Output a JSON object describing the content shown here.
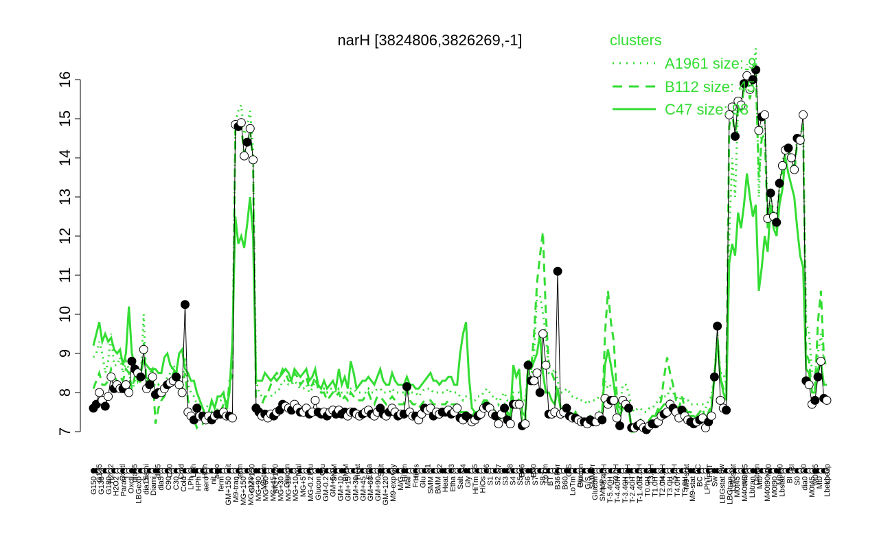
{
  "chart_data": {
    "type": "line",
    "title": "narH [3824806,3826269,-1]",
    "ylim": [
      7,
      16
    ],
    "yticks": [
      7,
      8,
      9,
      10,
      11,
      12,
      13,
      14,
      15,
      16
    ],
    "legend": {
      "title": "clusters",
      "placement": "top-right",
      "entries": [
        {
          "label": "A1961 size: 9",
          "style": "dotted"
        },
        {
          "label": "B112 size: 45",
          "style": "dashed"
        },
        {
          "label": "C47 size: 98",
          "style": "solid"
        }
      ]
    },
    "colors": {
      "axis": "#000000",
      "data": "#000000",
      "cluster": "#33dd33",
      "open_point": "#ffffff",
      "filled_point": "#000000"
    },
    "x_labels": [
      "G150",
      "G135",
      "G180",
      "H2O2",
      "Paraq",
      "Oxctl",
      "LBGexp",
      "dia15",
      "Diami",
      "dia5",
      "C90",
      "C30",
      "Cold",
      "LPh",
      "HPh",
      "aero",
      "nit",
      "ferm",
      "GM+150",
      "M9-tran",
      "MG+150",
      "MG+120",
      "MG+90",
      "MG+60",
      "MG+45",
      "MG+30",
      "MG+15",
      "MG+10",
      "MG+5",
      "MG-0.2",
      "Glucon",
      "GM-0.2",
      "GM+5",
      "GM+10",
      "GM+15",
      "GM+30",
      "GM+45",
      "GM+60",
      "GM+90",
      "GM+120",
      "M9-exp",
      "M/G",
      "Mal",
      "Fru",
      "Glu",
      "SMM",
      "BMM",
      "Heat",
      "Etha",
      "Salt",
      "Gly",
      "HiTm",
      "HiOs",
      "S1",
      "S2",
      "S3",
      "S4",
      "S5",
      "S6",
      "S7",
      "S8",
      "BT",
      "B36",
      "B60",
      "LoTm",
      "Pyr",
      "G/S",
      "Glucon",
      "SMMPr",
      "T-5.40H",
      "T-4.40H",
      "T-3.40H",
      "T-2.40H",
      "T-1.40H",
      "T0.0H",
      "T1.0H",
      "T2.0H",
      "T3.0H",
      "T4.0H",
      "T5.0H",
      "M9-stat",
      "BC",
      "LPhT",
      "Sw",
      "LBGstat",
      "LBGtran",
      "M0t45",
      "M40t45",
      "Lbtran",
      "Mt0",
      "M40t90",
      "M0t90",
      "Lbstat",
      "BI",
      "S0",
      "dia0",
      "M0t45",
      "Mt0",
      "Lbexp"
    ],
    "x_labels_top": [
      "G135",
      "H2O2",
      "Oxctl",
      "dia15",
      "Diami",
      "dia5",
      "C30",
      "Cold",
      "LPh",
      "HPh",
      "aero",
      "nit",
      "ferm",
      "GM+150",
      "M9-tran",
      "MG+120",
      "Glucon",
      "Mal",
      "Fru",
      "Glu",
      "SMM",
      "BMM",
      "Heat",
      "Etha",
      "Salt",
      "Gly",
      "HiTm",
      "HiOs",
      "S1",
      "S2",
      "S3",
      "S4",
      "S5",
      "S6",
      "S7",
      "S8",
      "B36",
      "B60",
      "LoTm",
      "Pyr",
      "G/S",
      "Glucon",
      "SMMPr",
      "T-5.40H",
      "T0.0H",
      "T1.0H",
      "T2.0H",
      "T3.0H",
      "T4.0H",
      "T5.0H",
      "M9-stat",
      "BC",
      "LPhT",
      "Sw",
      "LBGstat",
      "M0t45",
      "Lbtran",
      "Mt0",
      "M0t90",
      "BI",
      "S0",
      "M0t45",
      "Lbexp"
    ],
    "series": [
      {
        "name": "",
        "kind": "data",
        "values": [
          7.6,
          7.7,
          8.0,
          7.8,
          7.65,
          7.9,
          8.4,
          8.1,
          8.2,
          8.1,
          8.1,
          8.2,
          8.0,
          8.8,
          8.6,
          8.5,
          8.4,
          9.1,
          8.1,
          8.2,
          8.4,
          7.95,
          8.0,
          8.0,
          8.1,
          8.2,
          8.25,
          8.3,
          8.4,
          8.2,
          8.0,
          10.25,
          7.5,
          7.4,
          7.3,
          7.6,
          7.4,
          7.4,
          7.3,
          7.4,
          7.3,
          7.4,
          7.45,
          7.45,
          7.5,
          7.4,
          7.4,
          7.35,
          14.85,
          14.8,
          14.9,
          14.05,
          14.4,
          14.75,
          13.95,
          7.6,
          7.5,
          7.4,
          7.45,
          7.35,
          7.45,
          7.4,
          7.5,
          7.55,
          7.7,
          7.65,
          7.6,
          7.55,
          7.7,
          7.6,
          7.5,
          7.5,
          7.6,
          7.45,
          7.5,
          7.8,
          7.5,
          7.45,
          7.5,
          7.4,
          7.5,
          7.55,
          7.45,
          7.55,
          7.45,
          7.5,
          7.4,
          7.5,
          7.5,
          7.45,
          7.4,
          7.45,
          7.5,
          7.55,
          7.45,
          7.4,
          7.5,
          7.6,
          7.45,
          7.4,
          7.5,
          7.6,
          7.5,
          7.4,
          7.45,
          7.45,
          8.15,
          7.5,
          7.4,
          7.4,
          7.3,
          7.45,
          7.6,
          7.55,
          7.6,
          7.4,
          7.5,
          7.45,
          7.5,
          7.5,
          7.55,
          7.45,
          7.5,
          7.6,
          7.35,
          7.3,
          7.4,
          7.35,
          7.25,
          7.3,
          7.4,
          7.45,
          7.6,
          7.65,
          7.6,
          7.45,
          7.4,
          7.2,
          7.45,
          7.6,
          7.3,
          7.2,
          7.7,
          7.7,
          7.7,
          7.15,
          7.2,
          8.7,
          8.3,
          8.3,
          8.5,
          8.0,
          9.5,
          8.7,
          7.45,
          7.45,
          7.5,
          11.1,
          7.45,
          7.5,
          7.6,
          7.4,
          7.35,
          7.35,
          7.3,
          7.25,
          7.25,
          7.2,
          7.3,
          7.25,
          7.25,
          7.4,
          7.3,
          7.85,
          7.7,
          7.8,
          7.8,
          7.35,
          7.15,
          7.8,
          7.7,
          7.6,
          7.1,
          7.1,
          7.15,
          7.2,
          7.1,
          7.05,
          7.15,
          7.2,
          7.2,
          7.25,
          7.4,
          7.45,
          7.5,
          7.7,
          7.6,
          7.5,
          7.35,
          7.55,
          7.4,
          7.3,
          7.25,
          7.2,
          7.25,
          7.3,
          7.35,
          7.1,
          7.25,
          7.4,
          8.4,
          9.7,
          7.8,
          7.6,
          7.55,
          15.1,
          15.3,
          14.55,
          15.45,
          15.35,
          15.9,
          16.1,
          15.75,
          16.0,
          16.25,
          14.7,
          15.05,
          15.1,
          12.45,
          13.1,
          12.5,
          12.35,
          13.35,
          13.8,
          14.2,
          14.25,
          14.0,
          13.7,
          14.5,
          14.45,
          15.1,
          8.3,
          8.2,
          7.7,
          7.8,
          8.4,
          8.8,
          7.85,
          7.8
        ]
      },
      {
        "name": "",
        "kind": "cluster-A1961",
        "style": "dotted",
        "values": [
          8.9,
          9.0,
          9.3,
          9.0,
          8.5,
          8.8,
          9.5,
          8.7,
          8.7,
          8.9,
          8.5,
          8.8,
          8.6,
          8.0,
          8.3,
          8.4,
          8.3,
          10.0,
          8.1,
          8.4,
          8.6,
          8.0,
          8.2,
          8.1,
          8.2,
          8.4,
          8.5,
          8.7,
          8.6,
          8.4,
          8.2,
          8.9,
          8.2,
          8.0,
          7.9,
          7.7,
          7.7,
          7.6,
          7.6,
          7.7,
          7.7,
          7.7,
          7.8,
          7.8,
          7.9,
          7.7,
          8.1,
          8.8,
          14.9,
          15.2,
          15.35,
          14.6,
          14.8,
          15.2,
          14.2,
          8.3,
          8.0,
          7.9,
          7.9,
          7.9,
          7.9,
          8.0,
          8.0,
          8.1,
          8.3,
          8.3,
          8.2,
          8.2,
          8.3,
          8.2,
          8.1,
          8.1,
          8.2,
          8.0,
          8.1,
          8.3,
          8.1,
          8.0,
          8.1,
          8.0,
          8.1,
          8.1,
          8.0,
          8.1,
          8.0,
          8.0,
          8.0,
          8.1,
          8.1,
          8.0,
          8.0,
          8.0,
          8.0,
          8.1,
          8.0,
          8.0,
          8.1,
          8.1,
          8.0,
          8.0,
          8.0,
          8.1,
          8.0,
          8.0,
          8.0,
          8.0,
          8.3,
          8.0,
          8.0,
          8.0,
          7.9,
          8.0,
          8.1,
          8.1,
          8.1,
          8.0,
          8.0,
          8.0,
          8.0,
          8.0,
          8.1,
          8.0,
          8.0,
          8.0,
          7.9,
          7.8,
          7.9,
          7.9,
          7.8,
          7.8,
          7.9,
          7.9,
          8.0,
          8.1,
          8.0,
          7.9,
          7.9,
          7.7,
          7.9,
          8.0,
          7.8,
          7.8,
          8.0,
          8.0,
          8.0,
          7.8,
          7.8,
          8.5,
          8.4,
          9.0,
          10.5,
          10.5,
          10.0,
          9.5,
          8.5,
          8.5,
          8.6,
          8.3,
          8.0,
          8.0,
          8.1,
          8.0,
          7.9,
          7.9,
          7.8,
          7.8,
          7.8,
          7.7,
          7.8,
          7.8,
          7.8,
          7.9,
          7.8,
          8.3,
          8.1,
          8.2,
          8.2,
          7.8,
          7.6,
          8.2,
          8.2,
          8.0,
          7.6,
          7.5,
          7.6,
          7.6,
          7.5,
          7.5,
          7.6,
          7.6,
          7.7,
          7.8,
          7.9,
          7.9,
          7.9,
          8.1,
          8.0,
          7.9,
          7.8,
          7.9,
          7.8,
          7.8,
          7.7,
          7.7,
          7.7,
          7.7,
          7.7,
          7.6,
          7.8,
          7.9,
          8.5,
          9.5,
          8.5,
          8.5,
          8.2,
          12.0,
          14.0,
          13.0,
          15.3,
          15.2,
          15.9,
          16.4,
          15.9,
          16.3,
          16.8,
          13.0,
          14.8,
          14.9,
          12.6,
          13.0,
          12.6,
          12.4,
          13.3,
          13.9,
          14.2,
          14.3,
          14.0,
          13.8,
          14.5,
          14.5,
          14.9,
          9.8,
          9.5,
          8.5,
          8.5,
          9.0,
          9.5,
          8.8,
          8.8
        ]
      },
      {
        "name": "",
        "kind": "cluster-B112",
        "style": "dashed",
        "values": [
          8.1,
          8.3,
          8.5,
          8.2,
          8.2,
          8.3,
          8.6,
          8.4,
          8.3,
          8.4,
          8.3,
          8.6,
          8.5,
          8.1,
          8.4,
          8.5,
          8.2,
          9.3,
          8.2,
          8.5,
          8.6,
          7.2,
          7.6,
          7.8,
          7.9,
          8.2,
          8.2,
          8.5,
          8.6,
          8.3,
          8.1,
          8.5,
          7.8,
          7.5,
          7.3,
          7.1,
          7.2,
          7.2,
          7.3,
          7.4,
          7.5,
          7.3,
          7.6,
          7.5,
          7.7,
          7.4,
          8.3,
          8.4,
          14.7,
          14.9,
          14.8,
          14.1,
          14.3,
          14.7,
          13.9,
          7.6,
          7.6,
          7.7,
          7.9,
          8.0,
          8.2,
          8.4,
          8.5,
          8.4,
          8.6,
          8.5,
          8.3,
          8.3,
          8.5,
          8.4,
          8.2,
          8.3,
          8.4,
          8.1,
          8.2,
          8.4,
          8.1,
          8.0,
          8.0,
          7.8,
          7.9,
          8.0,
          7.9,
          8.0,
          7.8,
          7.9,
          7.8,
          8.0,
          7.9,
          7.8,
          7.8,
          7.8,
          7.9,
          8.0,
          7.8,
          7.7,
          7.9,
          7.9,
          7.8,
          7.7,
          7.8,
          7.9,
          7.8,
          7.7,
          7.7,
          7.7,
          8.2,
          7.8,
          7.7,
          7.7,
          7.6,
          7.7,
          7.8,
          7.8,
          7.8,
          7.7,
          7.7,
          7.7,
          7.7,
          7.7,
          7.8,
          7.7,
          7.7,
          7.7,
          7.5,
          7.5,
          7.5,
          7.5,
          7.4,
          7.5,
          7.5,
          7.6,
          7.7,
          7.8,
          7.7,
          7.6,
          7.5,
          7.2,
          7.5,
          7.6,
          7.4,
          7.3,
          7.9,
          7.9,
          7.8,
          7.3,
          7.2,
          8.9,
          8.6,
          9.5,
          10.8,
          11.5,
          12.1,
          10.0,
          8.7,
          8.5,
          8.3,
          8.0,
          7.6,
          7.6,
          7.6,
          7.5,
          7.4,
          7.5,
          7.3,
          7.3,
          7.3,
          7.3,
          7.4,
          7.3,
          7.3,
          7.5,
          7.3,
          9.5,
          10.6,
          9.8,
          9.3,
          7.9,
          7.5,
          7.8,
          7.8,
          7.6,
          7.0,
          7.0,
          7.1,
          7.1,
          7.0,
          7.0,
          7.2,
          7.3,
          7.4,
          7.6,
          7.8,
          8.4,
          8.9,
          8.5,
          8.2,
          7.8,
          7.6,
          7.9,
          7.6,
          7.5,
          7.5,
          7.4,
          7.4,
          7.5,
          7.6,
          7.3,
          7.5,
          7.7,
          8.4,
          9.4,
          8.4,
          8.1,
          8.0,
          14.8,
          15.2,
          14.5,
          15.3,
          15.2,
          15.8,
          15.9,
          15.5,
          15.9,
          16.1,
          13.5,
          14.5,
          14.6,
          12.2,
          12.8,
          12.3,
          12.2,
          13.1,
          13.6,
          14.1,
          14.2,
          13.9,
          13.6,
          14.4,
          14.4,
          14.8,
          9.0,
          8.8,
          8.0,
          8.1,
          9.8,
          10.6,
          8.9,
          8.6
        ]
      },
      {
        "name": "",
        "kind": "cluster-C47",
        "style": "solid",
        "values": [
          9.2,
          9.5,
          9.8,
          9.3,
          9.5,
          9.3,
          9.4,
          9.1,
          9.0,
          9.1,
          8.7,
          9.0,
          10.2,
          9.0,
          8.7,
          8.3,
          8.5,
          8.8,
          8.7,
          8.6,
          8.6,
          8.6,
          8.5,
          8.5,
          8.9,
          9.0,
          8.7,
          8.6,
          8.5,
          9.0,
          9.1,
          8.6,
          8.5,
          8.3,
          8.3,
          8.0,
          7.8,
          7.6,
          7.4,
          7.5,
          7.8,
          7.6,
          7.9,
          7.9,
          8.0,
          7.6,
          8.0,
          9.3,
          12.5,
          11.8,
          12.0,
          11.7,
          12.3,
          13.0,
          12.0,
          8.3,
          8.3,
          8.3,
          8.5,
          8.4,
          8.3,
          8.4,
          8.3,
          8.4,
          8.5,
          8.6,
          8.5,
          8.3,
          8.6,
          8.5,
          8.4,
          8.5,
          8.6,
          8.3,
          8.4,
          8.6,
          8.2,
          8.1,
          8.3,
          8.1,
          8.2,
          8.3,
          8.1,
          8.6,
          8.2,
          8.4,
          8.1,
          8.8,
          8.5,
          8.1,
          8.2,
          8.3,
          8.3,
          8.4,
          8.3,
          8.2,
          8.4,
          8.6,
          8.3,
          8.2,
          8.2,
          8.5,
          8.3,
          8.2,
          8.2,
          8.2,
          8.4,
          8.2,
          8.2,
          8.1,
          8.1,
          8.2,
          8.3,
          8.4,
          8.5,
          8.3,
          8.3,
          8.2,
          8.3,
          8.3,
          8.4,
          8.4,
          8.2,
          8.2,
          9.0,
          9.5,
          9.8,
          8.4,
          7.6,
          7.5,
          7.5,
          7.6,
          7.8,
          7.8,
          7.7,
          7.6,
          7.5,
          7.3,
          7.6,
          7.7,
          7.5,
          7.4,
          8.7,
          8.4,
          8.6,
          7.5,
          7.4,
          8.6,
          8.6,
          8.8,
          9.0,
          9.5,
          8.5,
          8.0,
          8.0,
          7.8,
          7.7,
          8.1,
          7.6,
          7.5,
          7.6,
          7.5,
          7.4,
          7.5,
          7.3,
          7.3,
          7.3,
          7.3,
          7.4,
          7.3,
          7.3,
          7.5,
          7.4,
          8.7,
          9.1,
          8.7,
          8.2,
          7.6,
          7.4,
          7.6,
          7.6,
          7.6,
          7.1,
          7.1,
          7.2,
          7.3,
          7.1,
          7.1,
          7.3,
          7.4,
          7.4,
          7.5,
          7.6,
          7.7,
          7.7,
          7.8,
          7.7,
          7.6,
          7.5,
          7.6,
          7.5,
          7.4,
          7.4,
          7.4,
          7.3,
          7.4,
          7.4,
          7.2,
          7.4,
          7.6,
          8.4,
          9.4,
          8.4,
          8.0,
          7.8,
          11.3,
          11.8,
          11.5,
          12.6,
          12.2,
          12.8,
          13.6,
          13.0,
          12.5,
          12.8,
          10.6,
          11.2,
          12.0,
          11.6,
          12.8,
          12.2,
          12.0,
          12.8,
          13.2,
          14.0,
          13.6,
          13.3,
          13.0,
          12.2,
          11.5,
          11.2,
          8.6,
          8.5,
          8.0,
          8.0,
          8.6,
          8.8,
          8.2,
          8.2
        ]
      }
    ]
  }
}
